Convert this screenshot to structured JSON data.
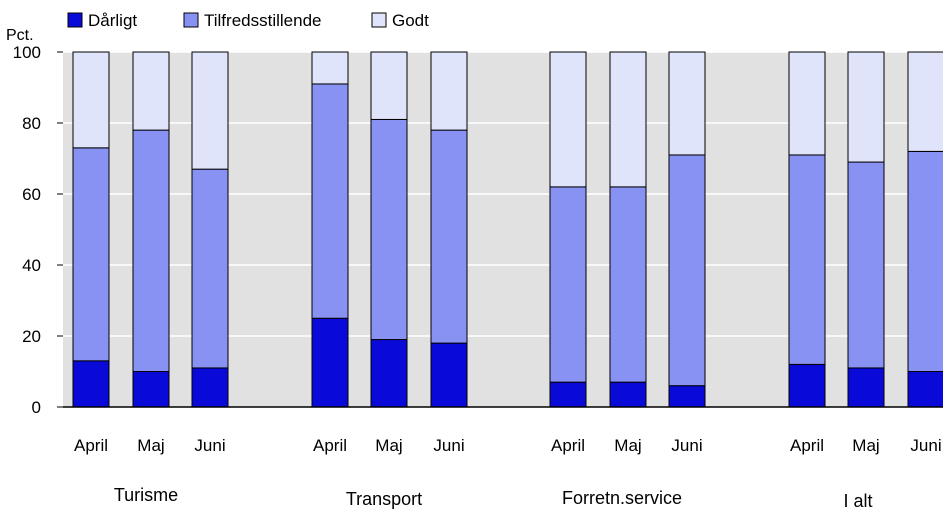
{
  "chart_data": {
    "type": "bar",
    "stacked": true,
    "title": "",
    "ylabel": "Pct.",
    "xlabel": "",
    "ylim": [
      0,
      100
    ],
    "yticks": [
      0,
      20,
      40,
      60,
      80,
      100
    ],
    "grid": true,
    "legend_position": "top-left",
    "groups": [
      {
        "name": "Turisme",
        "categories": [
          "April",
          "Maj",
          "Juni"
        ]
      },
      {
        "name": "Transport",
        "categories": [
          "April",
          "Maj",
          "Juni"
        ]
      },
      {
        "name": "Forretn.service",
        "categories": [
          "April",
          "Maj",
          "Juni"
        ]
      },
      {
        "name": "I alt",
        "categories": [
          "April",
          "Maj",
          "Juni"
        ]
      }
    ],
    "series": [
      {
        "name": "Dårligt",
        "color": "#0a0ad8",
        "values": [
          13,
          10,
          11,
          25,
          19,
          18,
          7,
          7,
          6,
          12,
          11,
          10
        ]
      },
      {
        "name": "Tilfredsstillende",
        "color": "#8892f2",
        "values": [
          60,
          68,
          56,
          66,
          62,
          60,
          55,
          55,
          65,
          59,
          58,
          62
        ]
      },
      {
        "name": "Godt",
        "color": "#e0e4fa",
        "values": [
          27,
          22,
          33,
          9,
          19,
          22,
          38,
          38,
          29,
          29,
          31,
          28
        ]
      }
    ],
    "colors": {
      "background": "#e1e1e1",
      "grid": "#ffffff",
      "bar_stroke": "#000000"
    }
  }
}
